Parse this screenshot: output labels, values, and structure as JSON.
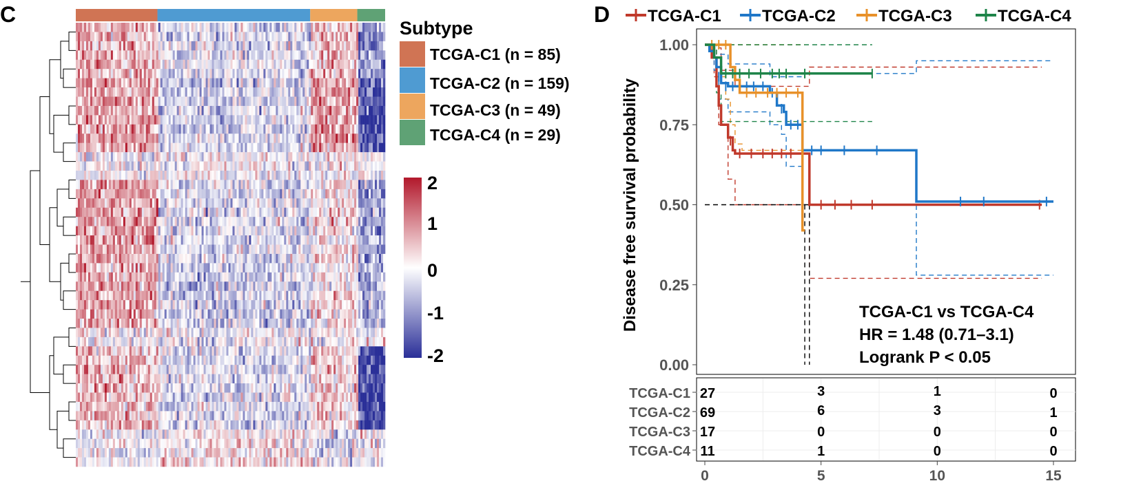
{
  "panel_c": {
    "label": "C",
    "legend_title": "Subtype",
    "subtypes": [
      {
        "label": "TCGA-C1 (n = 85)",
        "color": "#D07454",
        "n": 85
      },
      {
        "label": "TCGA-C2 (n = 159)",
        "color": "#4F9BD2",
        "n": 159
      },
      {
        "label": "TCGA-C3 (n = 49)",
        "color": "#EDA65E",
        "n": 49
      },
      {
        "label": "TCGA-C4 (n = 29)",
        "color": "#5FA275",
        "n": 29
      }
    ],
    "colorbar": {
      "ticks": [
        "2",
        "1",
        "0",
        "-1",
        "-2"
      ],
      "values": [
        2,
        1,
        0,
        -1,
        -2
      ],
      "colors": [
        "#B2182B",
        "#FFFFFF",
        "#2A2F98"
      ]
    }
  },
  "panel_d": {
    "label": "D",
    "legend": [
      {
        "name": "TCGA-C1",
        "color": "#C0392B"
      },
      {
        "name": "TCGA-C2",
        "color": "#1F77C8"
      },
      {
        "name": "TCGA-C3",
        "color": "#E8912A"
      },
      {
        "name": "TCGA-C4",
        "color": "#1E8449"
      }
    ],
    "annotation": [
      "TCGA-C1 vs TCGA-C4",
      "HR = 1.48 (0.71–3.1)",
      "Logrank P < 0.05"
    ],
    "risk_table": {
      "groups": [
        "TCGA-C1",
        "TCGA-C2",
        "TCGA-C3",
        "TCGA-C4"
      ],
      "times": [
        0,
        5,
        10,
        15
      ],
      "counts": [
        [
          "27",
          "3",
          "1",
          "0"
        ],
        [
          "69",
          "6",
          "3",
          "1"
        ],
        [
          "17",
          "0",
          "0",
          "0"
        ],
        [
          "11",
          "1",
          "0",
          "0"
        ]
      ]
    }
  },
  "chart_data": {
    "type": "line",
    "title": "",
    "xlabel": "",
    "ylabel": "Disease free survival probability",
    "xlim": [
      0,
      15
    ],
    "ylim": [
      0,
      1
    ],
    "x_ticks": [
      "0",
      "5",
      "10",
      "15"
    ],
    "y_ticks": [
      "0.00",
      "0.25",
      "0.50",
      "0.75",
      "1.00"
    ],
    "median_line": 0.5,
    "series": [
      {
        "name": "TCGA-C1",
        "color": "#C0392B",
        "steps": [
          [
            0,
            1
          ],
          [
            0.3,
            0.96
          ],
          [
            0.5,
            0.87
          ],
          [
            0.6,
            0.81
          ],
          [
            0.7,
            0.75
          ],
          [
            1,
            0.71
          ],
          [
            1.2,
            0.67
          ],
          [
            1.3,
            0.66
          ],
          [
            4.5,
            0.66
          ],
          [
            4.5,
            0.5
          ],
          [
            14.5,
            0.5
          ]
        ],
        "censors": [
          [
            1.1,
            0.7
          ],
          [
            1.5,
            0.66
          ],
          [
            2,
            0.66
          ],
          [
            2.5,
            0.66
          ],
          [
            2.9,
            0.66
          ],
          [
            3.3,
            0.66
          ],
          [
            3.7,
            0.66
          ],
          [
            5,
            0.5
          ],
          [
            5.6,
            0.5
          ],
          [
            6.3,
            0.5
          ],
          [
            7.2,
            0.5
          ],
          [
            14.4,
            0.5
          ]
        ],
        "ci_upper": [
          [
            0,
            1
          ],
          [
            0.4,
            0.99
          ],
          [
            0.7,
            0.92
          ],
          [
            1.3,
            0.87
          ],
          [
            4.5,
            0.87
          ],
          [
            4.5,
            0.93
          ],
          [
            14.5,
            0.93
          ]
        ],
        "ci_lower": [
          [
            0,
            1
          ],
          [
            0.4,
            0.9
          ],
          [
            0.6,
            0.75
          ],
          [
            1,
            0.58
          ],
          [
            1.3,
            0.5
          ],
          [
            4.5,
            0.5
          ],
          [
            4.5,
            0.27
          ],
          [
            14.5,
            0.27
          ]
        ]
      },
      {
        "name": "TCGA-C2",
        "color": "#1F77C8",
        "steps": [
          [
            0,
            1
          ],
          [
            0.2,
            0.98
          ],
          [
            0.4,
            0.96
          ],
          [
            0.5,
            0.93
          ],
          [
            0.7,
            0.88
          ],
          [
            1,
            0.87
          ],
          [
            2.8,
            0.87
          ],
          [
            2.8,
            0.85
          ],
          [
            3.1,
            0.81
          ],
          [
            3.4,
            0.79
          ],
          [
            3.5,
            0.75
          ],
          [
            4.2,
            0.75
          ],
          [
            4.2,
            0.67
          ],
          [
            9.1,
            0.67
          ],
          [
            9.1,
            0.51
          ],
          [
            15,
            0.51
          ]
        ],
        "censors": [
          [
            0.6,
            0.9
          ],
          [
            0.9,
            0.87
          ],
          [
            1.2,
            0.87
          ],
          [
            1.5,
            0.87
          ],
          [
            1.8,
            0.87
          ],
          [
            2.1,
            0.87
          ],
          [
            2.5,
            0.87
          ],
          [
            2.9,
            0.85
          ],
          [
            3.3,
            0.8
          ],
          [
            3.7,
            0.75
          ],
          [
            4,
            0.75
          ],
          [
            4.6,
            0.67
          ],
          [
            5,
            0.67
          ],
          [
            6,
            0.67
          ],
          [
            7.4,
            0.67
          ],
          [
            11,
            0.51
          ],
          [
            12,
            0.51
          ],
          [
            14.7,
            0.51
          ]
        ],
        "ci_upper": [
          [
            0,
            1
          ],
          [
            0.5,
            0.97
          ],
          [
            1,
            0.94
          ],
          [
            2.8,
            0.94
          ],
          [
            2.8,
            0.9
          ],
          [
            4.2,
            0.9
          ],
          [
            4.2,
            0.91
          ],
          [
            9.1,
            0.91
          ],
          [
            9.1,
            0.95
          ],
          [
            15,
            0.95
          ]
        ],
        "ci_lower": [
          [
            0,
            1
          ],
          [
            0.4,
            0.92
          ],
          [
            0.6,
            0.83
          ],
          [
            1,
            0.79
          ],
          [
            2.8,
            0.79
          ],
          [
            2.8,
            0.75
          ],
          [
            3.3,
            0.72
          ],
          [
            3.5,
            0.62
          ],
          [
            4.2,
            0.62
          ],
          [
            4.2,
            0.5
          ],
          [
            9.1,
            0.5
          ],
          [
            9.1,
            0.28
          ],
          [
            15,
            0.28
          ]
        ]
      },
      {
        "name": "TCGA-C3",
        "color": "#E8912A",
        "steps": [
          [
            0,
            1
          ],
          [
            1.1,
            1
          ],
          [
            1.1,
            0.93
          ],
          [
            1.3,
            0.89
          ],
          [
            1.5,
            0.85
          ],
          [
            4.2,
            0.85
          ],
          [
            4.2,
            0.42
          ],
          [
            4.3,
            0.42
          ]
        ],
        "censors": [
          [
            0.3,
            1
          ],
          [
            0.6,
            1
          ],
          [
            0.9,
            1
          ],
          [
            1.8,
            0.85
          ],
          [
            2.2,
            0.85
          ],
          [
            2.7,
            0.85
          ],
          [
            3.1,
            0.85
          ],
          [
            3.5,
            0.85
          ],
          [
            4,
            0.85
          ]
        ],
        "ci_upper": [
          [
            0,
            1
          ],
          [
            4.3,
            1
          ]
        ],
        "ci_lower": [
          [
            0,
            1
          ],
          [
            0.5,
            0.9
          ],
          [
            0.9,
            0.83
          ],
          [
            1.1,
            0.75
          ],
          [
            1.3,
            0.69
          ],
          [
            1.6,
            0.67
          ],
          [
            4.3,
            0.67
          ]
        ]
      },
      {
        "name": "TCGA-C4",
        "color": "#1E8449",
        "steps": [
          [
            0,
            1
          ],
          [
            0.4,
            1
          ],
          [
            0.4,
            0.96
          ],
          [
            0.7,
            0.91
          ],
          [
            7.2,
            0.91
          ]
        ],
        "censors": [
          [
            0.9,
            0.91
          ],
          [
            1.2,
            0.91
          ],
          [
            1.5,
            0.91
          ],
          [
            1.9,
            0.91
          ],
          [
            2.4,
            0.91
          ],
          [
            2.9,
            0.91
          ],
          [
            3.2,
            0.91
          ],
          [
            3.5,
            0.91
          ],
          [
            4.3,
            0.91
          ],
          [
            7.2,
            0.91
          ]
        ],
        "ci_upper": [
          [
            0,
            1
          ],
          [
            7.2,
            1
          ]
        ],
        "ci_lower": [
          [
            0,
            1
          ],
          [
            0.5,
            0.85
          ],
          [
            0.7,
            0.76
          ],
          [
            7.2,
            0.76
          ]
        ]
      }
    ]
  }
}
